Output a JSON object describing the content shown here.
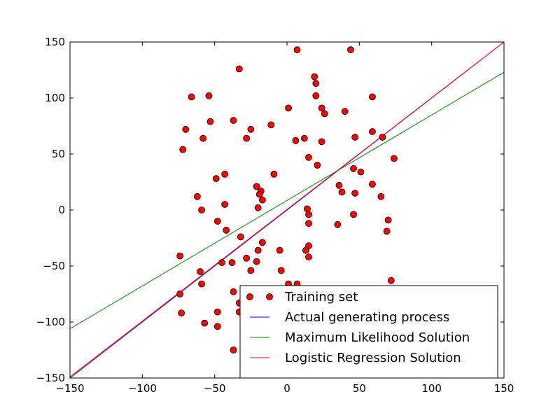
{
  "chart_data": {
    "type": "scatter",
    "title": "",
    "xlabel": "",
    "ylabel": "",
    "xlim": [
      -150,
      150
    ],
    "ylim": [
      -150,
      150
    ],
    "xticks": [
      -150,
      -100,
      -50,
      0,
      50,
      100,
      150
    ],
    "yticks": [
      -150,
      -100,
      -50,
      0,
      50,
      100,
      150
    ],
    "grid": false,
    "legend_position": "lower-right",
    "scatter": {
      "name": "Training set",
      "color": "#ff0000",
      "points": [
        [
          7,
          143
        ],
        [
          44,
          143
        ],
        [
          -33,
          126
        ],
        [
          19,
          119
        ],
        [
          20,
          113
        ],
        [
          -66,
          101
        ],
        [
          -54,
          102
        ],
        [
          20,
          102
        ],
        [
          59,
          101
        ],
        [
          1,
          91
        ],
        [
          24,
          91
        ],
        [
          26,
          86
        ],
        [
          40,
          88
        ],
        [
          -53,
          79
        ],
        [
          -37,
          80
        ],
        [
          -11,
          76
        ],
        [
          -70,
          72
        ],
        [
          -25,
          72
        ],
        [
          -58,
          64
        ],
        [
          -28,
          64
        ],
        [
          6,
          62
        ],
        [
          12,
          64
        ],
        [
          24,
          61
        ],
        [
          47,
          65
        ],
        [
          59,
          70
        ],
        [
          66,
          65
        ],
        [
          -72,
          54
        ],
        [
          15,
          47
        ],
        [
          21,
          40
        ],
        [
          74,
          46
        ],
        [
          -43,
          32
        ],
        [
          -9,
          32
        ],
        [
          46,
          37
        ],
        [
          51,
          34
        ],
        [
          -49,
          28
        ],
        [
          -21,
          21
        ],
        [
          -18,
          17
        ],
        [
          -19,
          14
        ],
        [
          36,
          22
        ],
        [
          59,
          23
        ],
        [
          -62,
          12
        ],
        [
          -17,
          9
        ],
        [
          38,
          16
        ],
        [
          47,
          15
        ],
        [
          65,
          12
        ],
        [
          -43,
          5
        ],
        [
          -20,
          2
        ],
        [
          -59,
          0
        ],
        [
          14,
          1
        ],
        [
          15,
          -4
        ],
        [
          46,
          -4
        ],
        [
          -48,
          -10
        ],
        [
          15,
          -12
        ],
        [
          35,
          -13
        ],
        [
          70,
          -9
        ],
        [
          -42,
          -18
        ],
        [
          69,
          -19
        ],
        [
          -32,
          -24
        ],
        [
          -17,
          -29
        ],
        [
          15,
          -32
        ],
        [
          -20,
          -36
        ],
        [
          -5,
          -36
        ],
        [
          13,
          -36
        ],
        [
          -74,
          -41
        ],
        [
          -28,
          -43
        ],
        [
          15,
          -42
        ],
        [
          -45,
          -47
        ],
        [
          -38,
          -47
        ],
        [
          -21,
          -46
        ],
        [
          -60,
          -55
        ],
        [
          -25,
          -54
        ],
        [
          -4,
          -54
        ],
        [
          -59,
          -66
        ],
        [
          1,
          -66
        ],
        [
          7,
          -66
        ],
        [
          72,
          -63
        ],
        [
          -74,
          -75
        ],
        [
          -37,
          -73
        ],
        [
          -33,
          -83
        ],
        [
          -73,
          -92
        ],
        [
          -48,
          -91
        ],
        [
          -33,
          -91
        ],
        [
          -57,
          -101
        ],
        [
          -48,
          -104
        ],
        [
          -37,
          -125
        ]
      ]
    },
    "series": [
      {
        "name": "Actual generating process",
        "color": "#0000ff",
        "x": [
          -150,
          150
        ],
        "y": [
          -150,
          150
        ]
      },
      {
        "name": "Maximum Likelihood Solution",
        "color": "#008000",
        "x": [
          -150,
          150
        ],
        "y": [
          -106,
          123
        ]
      },
      {
        "name": "Logistic Regression Solution",
        "color": "#ff0000",
        "x": [
          -150,
          150
        ],
        "y": [
          -149,
          150
        ]
      }
    ]
  }
}
